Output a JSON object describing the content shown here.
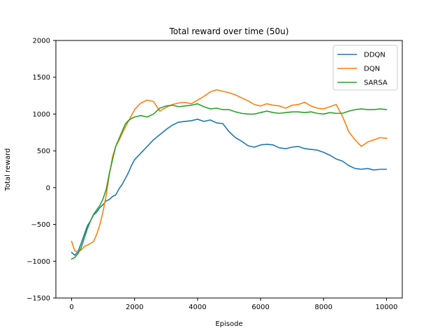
{
  "chart_data": {
    "type": "line",
    "title": "Total reward over time (50u)",
    "xlabel": "Episode",
    "ylabel": "Total reward",
    "xlim": [
      -500,
      10500
    ],
    "ylim": [
      -1500,
      2000
    ],
    "xticks": [
      0,
      2000,
      4000,
      6000,
      8000,
      10000
    ],
    "yticks": [
      -1500,
      -1000,
      -500,
      0,
      500,
      1000,
      1500,
      2000
    ],
    "grid": false,
    "legend_position": "top-right",
    "series": [
      {
        "name": "DDQN",
        "color": "#1f77b4",
        "x": [
          0,
          100,
          200,
          300,
          400,
          500,
          600,
          700,
          800,
          900,
          1000,
          1100,
          1200,
          1300,
          1400,
          1500,
          1600,
          1700,
          1800,
          1900,
          2000,
          2200,
          2400,
          2600,
          2800,
          3000,
          3200,
          3400,
          3600,
          3800,
          4000,
          4200,
          4400,
          4600,
          4800,
          5000,
          5200,
          5400,
          5600,
          5800,
          6000,
          6200,
          6400,
          6600,
          6800,
          7000,
          7200,
          7400,
          7600,
          7800,
          8000,
          8200,
          8400,
          8600,
          8800,
          9000,
          9200,
          9400,
          9600,
          9800,
          10000
        ],
        "values": [
          -880,
          -920,
          -870,
          -760,
          -640,
          -520,
          -450,
          -370,
          -330,
          -270,
          -230,
          -180,
          -160,
          -120,
          -100,
          -20,
          40,
          120,
          200,
          300,
          380,
          470,
          560,
          650,
          720,
          790,
          850,
          890,
          900,
          910,
          930,
          900,
          920,
          880,
          870,
          760,
          680,
          630,
          570,
          550,
          580,
          590,
          580,
          540,
          530,
          550,
          560,
          530,
          520,
          510,
          480,
          440,
          390,
          360,
          300,
          260,
          250,
          260,
          240,
          250,
          250
        ]
      },
      {
        "name": "DQN",
        "color": "#ff7f0e",
        "x": [
          0,
          100,
          200,
          300,
          400,
          500,
          600,
          700,
          800,
          900,
          1000,
          1100,
          1200,
          1300,
          1400,
          1500,
          1600,
          1700,
          1800,
          1900,
          2000,
          2200,
          2400,
          2600,
          2800,
          3000,
          3200,
          3400,
          3600,
          3800,
          4000,
          4200,
          4400,
          4600,
          4800,
          5000,
          5200,
          5400,
          5600,
          5800,
          6000,
          6200,
          6400,
          6600,
          6800,
          7000,
          7200,
          7400,
          7600,
          7800,
          8000,
          8200,
          8400,
          8600,
          8800,
          9000,
          9200,
          9400,
          9600,
          9800,
          10000
        ],
        "values": [
          -730,
          -860,
          -870,
          -850,
          -800,
          -780,
          -760,
          -730,
          -630,
          -500,
          -320,
          -100,
          180,
          420,
          560,
          640,
          730,
          820,
          900,
          980,
          1060,
          1150,
          1190,
          1170,
          1040,
          1090,
          1130,
          1150,
          1160,
          1140,
          1190,
          1240,
          1300,
          1330,
          1310,
          1290,
          1260,
          1220,
          1180,
          1130,
          1110,
          1140,
          1120,
          1110,
          1080,
          1120,
          1130,
          1160,
          1110,
          1080,
          1070,
          1100,
          1130,
          970,
          760,
          650,
          560,
          620,
          650,
          680,
          670
        ]
      },
      {
        "name": "SARSA",
        "color": "#2ca02c",
        "x": [
          0,
          100,
          200,
          300,
          400,
          500,
          600,
          700,
          800,
          900,
          1000,
          1100,
          1200,
          1300,
          1400,
          1500,
          1600,
          1700,
          1800,
          1900,
          2000,
          2200,
          2400,
          2600,
          2800,
          3000,
          3200,
          3400,
          3600,
          3800,
          4000,
          4200,
          4400,
          4600,
          4800,
          5000,
          5200,
          5400,
          5600,
          5800,
          6000,
          6200,
          6400,
          6600,
          6800,
          7000,
          7200,
          7400,
          7600,
          7800,
          8000,
          8200,
          8400,
          8600,
          8800,
          9000,
          9200,
          9400,
          9600,
          9800,
          10000
        ],
        "values": [
          -970,
          -950,
          -900,
          -820,
          -690,
          -560,
          -450,
          -360,
          -300,
          -240,
          -150,
          -20,
          200,
          380,
          560,
          660,
          760,
          860,
          910,
          940,
          960,
          980,
          960,
          1000,
          1080,
          1110,
          1120,
          1100,
          1110,
          1120,
          1140,
          1100,
          1070,
          1080,
          1060,
          1060,
          1030,
          1010,
          1000,
          1000,
          1020,
          1040,
          1020,
          1010,
          1020,
          1030,
          1030,
          1020,
          1030,
          1010,
          1000,
          1020,
          1010,
          1010,
          1040,
          1060,
          1070,
          1060,
          1060,
          1070,
          1060
        ]
      }
    ]
  }
}
